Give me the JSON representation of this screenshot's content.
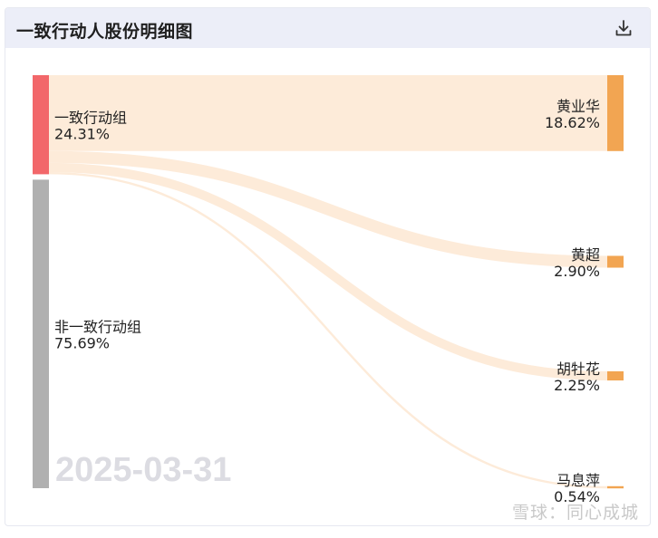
{
  "header": {
    "title": "一致行动人股份明细图",
    "download_icon": "download-icon"
  },
  "watermark": "雪球：同心成城",
  "chart_data": {
    "type": "sankey",
    "date_label": "2025-03-31",
    "sources": [
      {
        "name": "一致行动组",
        "value_label": "24.31%",
        "value": 24.31,
        "color": "#f2676a"
      },
      {
        "name": "非一致行动组",
        "value_label": "75.69%",
        "value": 75.69,
        "color": "#b0b0b0"
      }
    ],
    "targets": [
      {
        "name": "黄业华",
        "value_label": "18.62%",
        "value": 18.62,
        "color": "#f2a552"
      },
      {
        "name": "黄超",
        "value_label": "2.90%",
        "value": 2.9,
        "color": "#f2a552"
      },
      {
        "name": "胡牡花",
        "value_label": "2.25%",
        "value": 2.25,
        "color": "#f2a552"
      },
      {
        "name": "马息萍",
        "value_label": "0.54%",
        "value": 0.54,
        "color": "#f2a552"
      }
    ],
    "links": [
      {
        "source": "一致行动组",
        "target": "黄业华",
        "value": 18.62
      },
      {
        "source": "一致行动组",
        "target": "黄超",
        "value": 2.9
      },
      {
        "source": "一致行动组",
        "target": "胡牡花",
        "value": 2.25
      },
      {
        "source": "一致行动组",
        "target": "马息萍",
        "value": 0.54
      }
    ],
    "link_color": "#fdebd9"
  }
}
